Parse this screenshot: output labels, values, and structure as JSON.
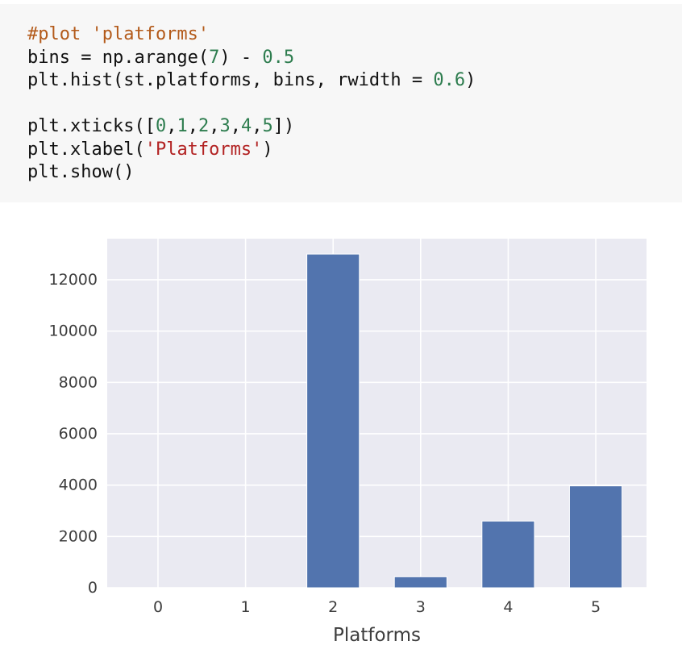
{
  "code_cell": {
    "lines": [
      [
        {
          "text": "#plot 'platforms'",
          "kind": "comment"
        }
      ],
      [
        {
          "text": "bins = np.arange(",
          "kind": "plain"
        },
        {
          "text": "7",
          "kind": "num"
        },
        {
          "text": ") - ",
          "kind": "plain"
        },
        {
          "text": "0.5",
          "kind": "num"
        }
      ],
      [
        {
          "text": "plt.hist(st.platforms, bins, rwidth = ",
          "kind": "plain"
        },
        {
          "text": "0.6",
          "kind": "num"
        },
        {
          "text": ")",
          "kind": "plain"
        }
      ],
      [
        {
          "text": "",
          "kind": "plain"
        }
      ],
      [
        {
          "text": "plt.xticks([",
          "kind": "plain"
        },
        {
          "text": "0",
          "kind": "num"
        },
        {
          "text": ",",
          "kind": "plain"
        },
        {
          "text": "1",
          "kind": "num"
        },
        {
          "text": ",",
          "kind": "plain"
        },
        {
          "text": "2",
          "kind": "num"
        },
        {
          "text": ",",
          "kind": "plain"
        },
        {
          "text": "3",
          "kind": "num"
        },
        {
          "text": ",",
          "kind": "plain"
        },
        {
          "text": "4",
          "kind": "num"
        },
        {
          "text": ",",
          "kind": "plain"
        },
        {
          "text": "5",
          "kind": "num"
        },
        {
          "text": "])",
          "kind": "plain"
        }
      ],
      [
        {
          "text": "plt.xlabel(",
          "kind": "plain"
        },
        {
          "text": "'Platforms'",
          "kind": "str"
        },
        {
          "text": ")",
          "kind": "plain"
        }
      ],
      [
        {
          "text": "plt.show()",
          "kind": "plain"
        }
      ]
    ]
  },
  "chart_data": {
    "type": "bar",
    "categories": [
      "0",
      "1",
      "2",
      "3",
      "4",
      "5"
    ],
    "values": [
      0,
      0,
      13000,
      430,
      2600,
      3970
    ],
    "xlabel": "Platforms",
    "ylabel": "",
    "ylim": [
      0,
      13600
    ],
    "xlim": [
      -0.58,
      5.58
    ],
    "yticks": [
      0,
      2000,
      4000,
      6000,
      8000,
      10000,
      12000
    ],
    "bar_width_fraction": 0.6,
    "grid": true,
    "colors": {
      "bar": "#5274ae",
      "plot_background": "#eaeaf2",
      "grid": "#ffffff"
    }
  }
}
